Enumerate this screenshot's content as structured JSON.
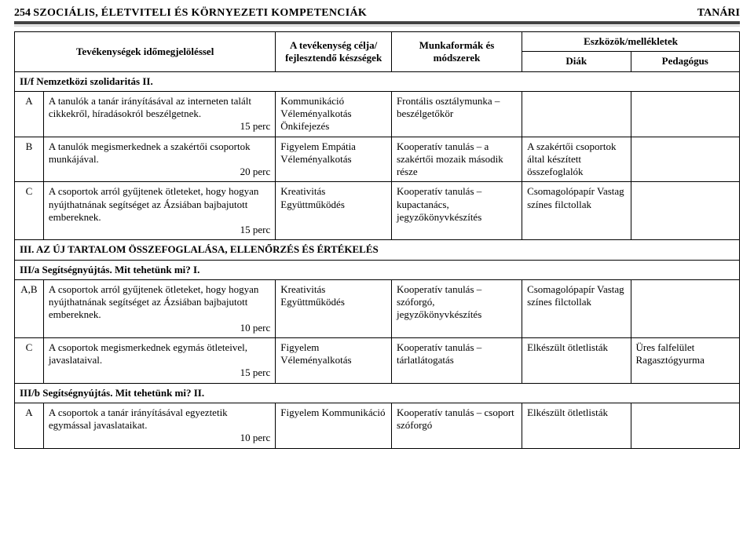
{
  "header": {
    "page_number": "254",
    "doc_title": "SZOCIÁLIS, ÉLETVITELI ÉS KÖRNYEZETI KOMPETENCIÁK",
    "role": "TANÁRI"
  },
  "colors": {
    "rule_dark": "#434343",
    "rule_light": "#d9d9d9",
    "border": "#000000",
    "text": "#000000",
    "bg": "#ffffff"
  },
  "table": {
    "head": {
      "activity": "Tevékenységek időmegjelöléssel",
      "goal": "A tevékenység célja/ fejlesztendő készségek",
      "form": "Munkaformák és módszerek",
      "tools_group": "Eszközök/mellékletek",
      "tool1": "Diák",
      "tool2": "Pedagógus"
    },
    "sections": [
      {
        "title": "II/f Nemzetközi szolidaritás II."
      },
      {
        "title": "III. AZ ÚJ TARTALOM ÖSSZEFOGLALÁSA, ELLENŐRZÉS ÉS ÉRTÉKELÉS"
      },
      {
        "title": "III/a Segítségnyújtás. Mit tehetünk mi? I."
      },
      {
        "title": "III/b Segítségnyújtás. Mit tehetünk mi? II."
      }
    ],
    "rows": {
      "r1": {
        "letter": "A",
        "activity": "A tanulók a tanár irányításával az interneten talált cikkekről, híradásokról beszélgetnek.",
        "timing": "15 perc",
        "goal": "Kommunikáció Véleményalkotás Önkifejezés",
        "form": "Frontális osztálymunka – beszélgetőkör",
        "tool1": "",
        "tool2": ""
      },
      "r2": {
        "letter": "B",
        "activity": "A tanulók megismerkednek a szakértői csoportok munkájával.",
        "timing": "20 perc",
        "goal": "Figyelem Empátia Véleményalkotás",
        "form": "Kooperatív tanulás – a szakértői mozaik második része",
        "tool1": "A szakértői csoportok által készített összefoglalók",
        "tool2": ""
      },
      "r3": {
        "letter": "C",
        "activity": "A csoportok arról gyűjtenek ötleteket, hogy hogyan nyújthatnának segítséget az Ázsiában bajbajutott embereknek.",
        "timing": "15 perc",
        "goal": "Kreativitás Együttműködés",
        "form": "Kooperatív tanulás – kupactanács, jegyzőkönyvkészítés",
        "tool1": "Csomagolópapír Vastag színes filctollak",
        "tool2": ""
      },
      "r4": {
        "letter": "A,B",
        "activity": "A csoportok arról gyűjtenek ötleteket, hogy hogyan nyújthatnának segítséget az Ázsiában bajbajutott embereknek.",
        "timing": "10 perc",
        "goal": "Kreativitás Együttműködés",
        "form": "Kooperatív tanulás – szóforgó, jegyzőkönyvkészítés",
        "tool1": "Csomagolópapír Vastag színes filctollak",
        "tool2": ""
      },
      "r5": {
        "letter": "C",
        "activity": "A csoportok megismerkednek egymás ötleteivel, javaslataival.",
        "timing": "15 perc",
        "goal": "Figyelem Véleményalkotás",
        "form": "Kooperatív tanulás – tárlatlátogatás",
        "tool1": "Elkészült ötletlisták",
        "tool2": "Üres falfelület Ragasztógyurma"
      },
      "r6": {
        "letter": "A",
        "activity": "A csoportok a tanár irányításával egyeztetik egymással javaslataikat.",
        "timing": "10 perc",
        "goal": "Figyelem Kommunikáció",
        "form": "Kooperatív tanulás – csoport szóforgó",
        "tool1": "Elkészült ötletlisták",
        "tool2": ""
      }
    }
  }
}
